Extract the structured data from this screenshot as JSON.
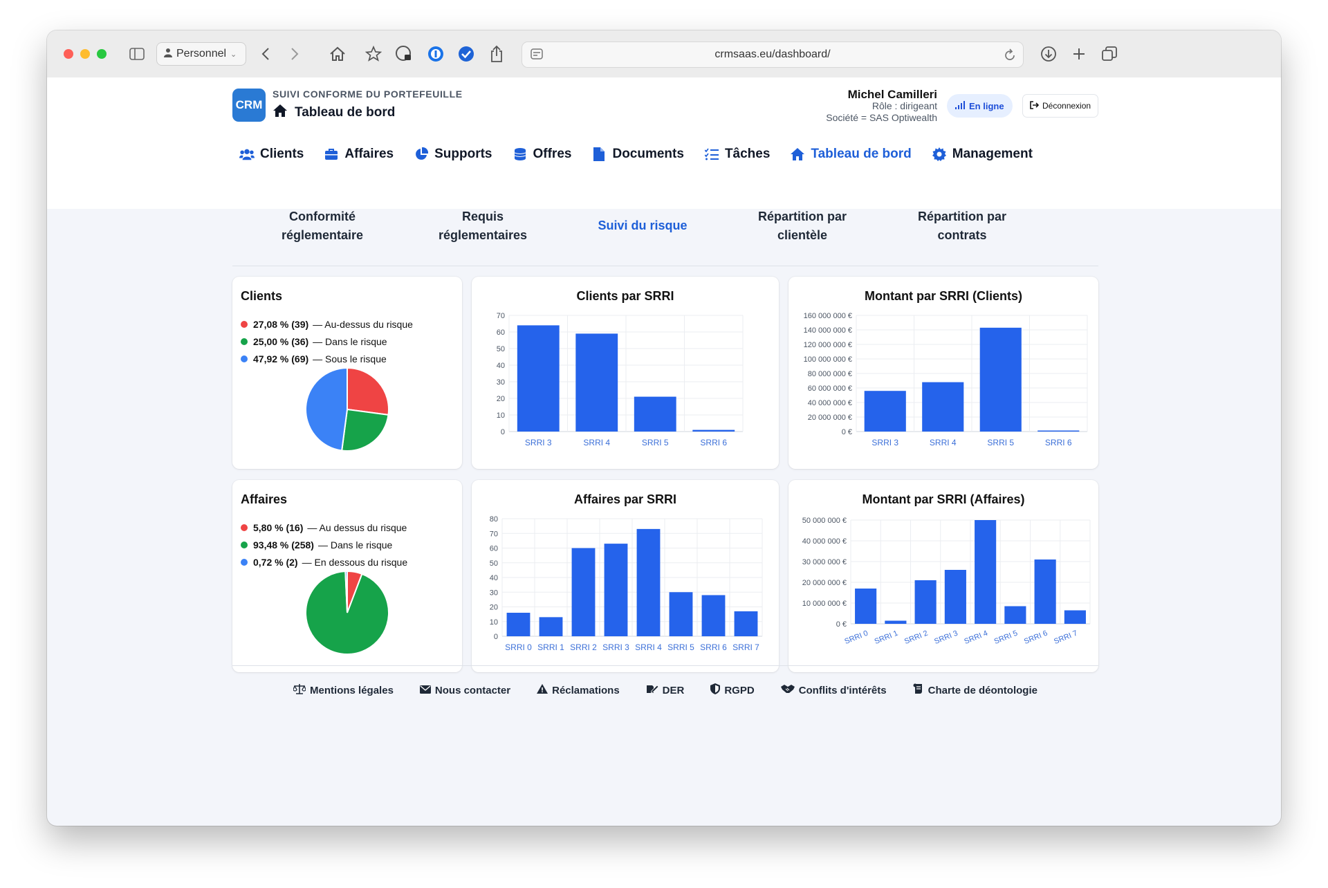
{
  "browser": {
    "profile_label": "Personnel",
    "url": "crmsaas.eu/dashboard/"
  },
  "app": {
    "logo_text": "CRM",
    "subtitle": "SUIVI CONFORME DU PORTEFEUILLE",
    "page_title": "Tableau de bord"
  },
  "user": {
    "name": "Michel Camilleri",
    "role": "Rôle : dirigeant",
    "company": "Société = SAS Optiwealth",
    "status": "En ligne",
    "logout_label": "Déconnexion"
  },
  "nav": {
    "items": [
      {
        "label": "Clients",
        "icon": "users-icon"
      },
      {
        "label": "Affaires",
        "icon": "briefcase-icon"
      },
      {
        "label": "Supports",
        "icon": "pie-chart-icon"
      },
      {
        "label": "Offres",
        "icon": "coins-icon"
      },
      {
        "label": "Documents",
        "icon": "file-icon"
      },
      {
        "label": "Tâches",
        "icon": "list-check-icon"
      },
      {
        "label": "Tableau de bord",
        "icon": "home-icon",
        "active": true
      },
      {
        "label": "Management",
        "icon": "gear-icon"
      }
    ]
  },
  "subtabs": {
    "items": [
      {
        "line1": "Conformité",
        "line2": "réglementaire"
      },
      {
        "line1": "Requis",
        "line2": "réglementaires"
      },
      {
        "line1": "Suivi du risque",
        "line2": "",
        "active": true
      },
      {
        "line1": "Répartition par",
        "line2": "clientèle"
      },
      {
        "line1": "Répartition par",
        "line2": "contrats"
      }
    ]
  },
  "cards": {
    "clients": {
      "title": "Clients",
      "legend": [
        {
          "pct": "27,08 % (39)",
          "label": "— Au-dessus du risque",
          "color": "#ef4444"
        },
        {
          "pct": "25,00 % (36)",
          "label": "— Dans le risque",
          "color": "#16a34a"
        },
        {
          "pct": "47,92 % (69)",
          "label": "— Sous le risque",
          "color": "#3b82f6"
        }
      ]
    },
    "affaires": {
      "title": "Affaires",
      "legend": [
        {
          "pct": "5,80 % (16)",
          "label": "— Au dessus du risque",
          "color": "#ef4444"
        },
        {
          "pct": "93,48 % (258)",
          "label": "— Dans le risque",
          "color": "#16a34a"
        },
        {
          "pct": "0,72 % (2)",
          "label": "— En dessous du risque",
          "color": "#3b82f6"
        }
      ]
    }
  },
  "chart_data": [
    {
      "type": "pie",
      "title": "Clients",
      "labels": [
        "Au-dessus du risque",
        "Dans le risque",
        "Sous le risque"
      ],
      "values": [
        39,
        36,
        69
      ],
      "colors": [
        "#ef4444",
        "#16a34a",
        "#3b82f6"
      ]
    },
    {
      "type": "bar",
      "title": "Clients par SRRI",
      "categories": [
        "SRRI 3",
        "SRRI 4",
        "SRRI 5",
        "SRRI 6"
      ],
      "values": [
        64,
        59,
        21,
        1
      ],
      "ylim": [
        0,
        70
      ],
      "yticks": [
        "0",
        "10",
        "20",
        "30",
        "40",
        "50",
        "60",
        "70"
      ],
      "grid": true,
      "color": "#2563eb"
    },
    {
      "type": "bar",
      "title": "Montant par SRRI (Clients)",
      "categories": [
        "SRRI 3",
        "SRRI 4",
        "SRRI 5",
        "SRRI 6"
      ],
      "values": [
        56000000,
        68000000,
        143000000,
        1000000
      ],
      "ylim": [
        0,
        160000000
      ],
      "yticks": [
        "0 €",
        "20 000 000 €",
        "40 000 000 €",
        "60 000 000 €",
        "80 000 000 €",
        "100 000 000 €",
        "120 000 000 €",
        "140 000 000 €",
        "160 000 000 €"
      ],
      "grid": true,
      "color": "#2563eb"
    },
    {
      "type": "pie",
      "title": "Affaires",
      "labels": [
        "Au dessus du risque",
        "Dans le risque",
        "En dessous du risque"
      ],
      "values": [
        16,
        258,
        2
      ],
      "colors": [
        "#ef4444",
        "#16a34a",
        "#3b82f6"
      ]
    },
    {
      "type": "bar",
      "title": "Affaires par SRRI",
      "categories": [
        "SRRI 0",
        "SRRI 1",
        "SRRI 2",
        "SRRI 3",
        "SRRI 4",
        "SRRI 5",
        "SRRI 6",
        "SRRI 7"
      ],
      "values": [
        16,
        13,
        60,
        63,
        73,
        30,
        28,
        17
      ],
      "ylim": [
        0,
        80
      ],
      "yticks": [
        "0",
        "10",
        "20",
        "30",
        "40",
        "50",
        "60",
        "70",
        "80"
      ],
      "grid": true,
      "color": "#2563eb"
    },
    {
      "type": "bar",
      "title": "Montant par SRRI (Affaires)",
      "categories": [
        "SRRI 0",
        "SRRI 1",
        "SRRI 2",
        "SRRI 3",
        "SRRI 4",
        "SRRI 5",
        "SRRI 6",
        "SRRI 7"
      ],
      "values": [
        17000000,
        1500000,
        21000000,
        26000000,
        50000000,
        8500000,
        31000000,
        6500000
      ],
      "ylim": [
        0,
        50000000
      ],
      "yticks": [
        "0 €",
        "10 000 000 €",
        "20 000 000 €",
        "30 000 000 €",
        "40 000 000 €",
        "50 000 000 €"
      ],
      "grid": true,
      "rotated_labels": true,
      "color": "#2563eb"
    }
  ],
  "footer": {
    "links": [
      {
        "label": "Mentions légales",
        "icon": "scale-icon"
      },
      {
        "label": "Nous contacter",
        "icon": "envelope-icon"
      },
      {
        "label": "Réclamations",
        "icon": "warning-icon"
      },
      {
        "label": "DER",
        "icon": "signature-icon"
      },
      {
        "label": "RGPD",
        "icon": "shield-icon"
      },
      {
        "label": "Conflits d'intérêts",
        "icon": "handshake-icon"
      },
      {
        "label": "Charte de déontologie",
        "icon": "scroll-icon"
      }
    ]
  }
}
